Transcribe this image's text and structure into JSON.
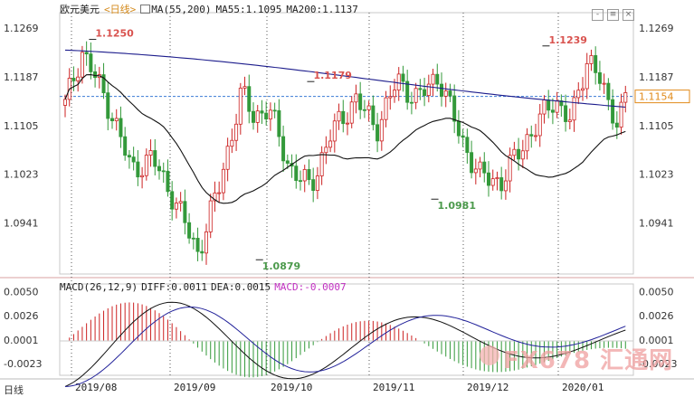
{
  "header": {
    "symbol": "欧元美元",
    "period": "<日线>",
    "ma_label": "MA(55,200)",
    "ma55_label": "MA55:1.1095",
    "ma200_label": "MA200:1.1137"
  },
  "macd_header": {
    "params": "MACD(26,12,9)",
    "diff": "DIFF:0.0011",
    "dea": "DEA:0.0015",
    "macd": "MACD:-0.0007"
  },
  "bottom_label": "日线",
  "watermark": "FX678 汇通网",
  "price_axis": [
    "1.1269",
    "1.1187",
    "1.1105",
    "1.1023",
    "1.0941"
  ],
  "current_price": "1.1154",
  "macd_axis": [
    "0.0050",
    "0.0026",
    "0.0001",
    "-0.0023"
  ],
  "colors": {
    "up": "#cc2222",
    "down": "#33993a",
    "ma55": "#111111",
    "ma200": "#1c1c8c",
    "diff": "#111111",
    "dea": "#22229a"
  },
  "chart_data": {
    "type": "candlestick",
    "title": "欧元美元",
    "x_ticks": [
      "2019/08",
      "2019/09",
      "2019/10",
      "2019/11",
      "2019/12",
      "2020/01"
    ],
    "ylim": [
      1.0855,
      1.1295
    ],
    "annotations": [
      {
        "label": "1.1250",
        "kind": "high",
        "value": 1.125
      },
      {
        "label": "1.1179",
        "kind": "high",
        "value": 1.1179
      },
      {
        "label": "1.0879",
        "kind": "low",
        "value": 1.0879
      },
      {
        "label": "1.0981",
        "kind": "low",
        "value": 1.0981
      },
      {
        "label": "1.1239",
        "kind": "high",
        "value": 1.1239
      }
    ],
    "series": [
      {
        "name": "MA55",
        "value": 1.1095
      },
      {
        "name": "MA200",
        "value": 1.1137
      }
    ],
    "macd": {
      "DIFF": 0.0011,
      "DEA": 0.0015,
      "MACD": -0.0007,
      "ylim": [
        -0.0035,
        0.0058
      ]
    }
  }
}
